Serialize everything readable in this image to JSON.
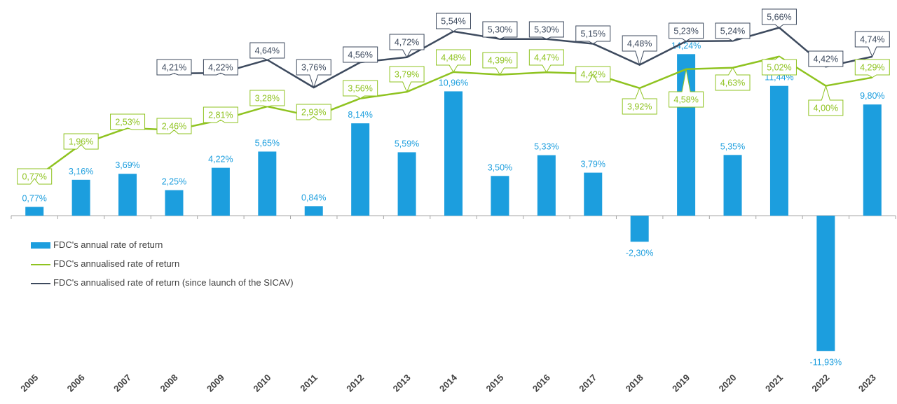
{
  "chart_data": {
    "type": "bar",
    "categories": [
      "2005",
      "2006",
      "2007",
      "2008",
      "2009",
      "2010",
      "2011",
      "2012",
      "2013",
      "2014",
      "2015",
      "2016",
      "2017",
      "2018",
      "2019",
      "2020",
      "2021",
      "2022",
      "2023"
    ],
    "series": [
      {
        "name": "FDC's annual rate of return",
        "type": "bar",
        "color": "#1c9ede",
        "values": [
          0.77,
          3.16,
          3.69,
          2.25,
          4.22,
          5.65,
          0.84,
          8.14,
          5.59,
          10.96,
          3.5,
          5.33,
          3.79,
          -2.3,
          14.24,
          5.35,
          11.44,
          -11.93,
          9.8
        ],
        "labels": [
          "0,77%",
          "3,16%",
          "3,69%",
          "2,25%",
          "4,22%",
          "5,65%",
          "0,84%",
          "8,14%",
          "5,59%",
          "10,96%",
          "3,50%",
          "5,33%",
          "3,79%",
          "-2,30%",
          "14,24%",
          "5,35%",
          "11,44%",
          "-11,93%",
          "9,80%"
        ]
      },
      {
        "name": "FDC's annualised rate of return",
        "type": "line",
        "color": "#8fc320",
        "values": [
          0.77,
          1.96,
          2.53,
          2.46,
          2.81,
          3.28,
          2.93,
          3.56,
          3.79,
          4.48,
          4.39,
          4.47,
          4.42,
          3.92,
          4.58,
          4.63,
          5.02,
          4.0,
          4.29
        ],
        "labels": [
          "0,77%",
          "1,96%",
          "2,53%",
          "2,46%",
          "2,81%",
          "3,28%",
          "2,93%",
          "3,56%",
          "3,79%",
          "4,48%",
          "4,39%",
          "4,47%",
          "4,42%",
          "3,92%",
          "4,58%",
          "4,63%",
          "5,02%",
          "4,00%",
          "4,29%"
        ]
      },
      {
        "name": "FDC's annualised rate of return (since launch of the SICAV)",
        "type": "line",
        "color": "#3d4a5e",
        "values": [
          null,
          null,
          null,
          4.21,
          4.22,
          4.64,
          3.76,
          4.56,
          4.72,
          5.54,
          5.3,
          5.3,
          5.15,
          4.48,
          5.23,
          5.24,
          5.66,
          4.42,
          4.74
        ],
        "labels": [
          null,
          null,
          null,
          "4,21%",
          "4,22%",
          "4,64%",
          "3,76%",
          "4,56%",
          "4,72%",
          "5,54%",
          "5,30%",
          "5,30%",
          "5,15%",
          "4,48%",
          "5,23%",
          "5,24%",
          "5,66%",
          "4,42%",
          "4,74%"
        ]
      }
    ],
    "legend_position": "left-middle",
    "grid": false
  }
}
